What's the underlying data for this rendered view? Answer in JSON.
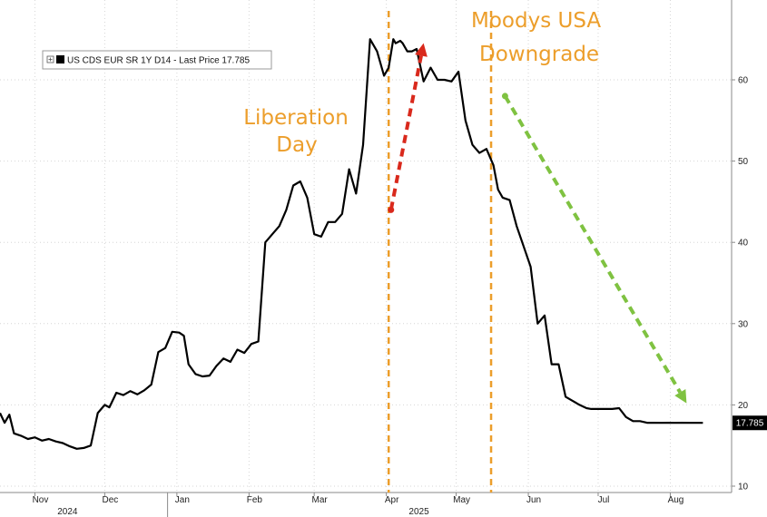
{
  "chart_data": {
    "type": "line",
    "legend_entry": "US CDS EUR SR 1Y D14 - Last Price 17.785",
    "last_price_label": "17.785",
    "last_price": 17.785,
    "ylim": [
      10,
      66
    ],
    "y_ticks": [
      10,
      20,
      30,
      40,
      50,
      60
    ],
    "y_tick_labels": [
      "10",
      "20",
      "30",
      "40",
      "50",
      "60"
    ],
    "x_ticks": [
      {
        "date": "2024-11-01",
        "label": "Nov"
      },
      {
        "date": "2024-12-01",
        "label": "Dec"
      },
      {
        "date": "2025-01-01",
        "label": "Jan"
      },
      {
        "date": "2025-02-01",
        "label": "Feb"
      },
      {
        "date": "2025-03-01",
        "label": "Mar"
      },
      {
        "date": "2025-04-01",
        "label": "Apr"
      },
      {
        "date": "2025-05-01",
        "label": "May"
      },
      {
        "date": "2025-06-01",
        "label": "Jun"
      },
      {
        "date": "2025-07-01",
        "label": "Jul"
      },
      {
        "date": "2025-08-01",
        "label": "Aug"
      }
    ],
    "year_labels": [
      {
        "date": "2024-11-15",
        "label": "2024"
      },
      {
        "date": "2025-04-15",
        "label": "2025"
      }
    ],
    "xlim": [
      "2024-10-17",
      "2025-08-25"
    ],
    "grid": true,
    "legend_position": "top-left",
    "y_axis_position": "right",
    "series": [
      {
        "color": "#000000",
        "x": [
          "2024-10-17",
          "2024-10-19",
          "2024-10-21",
          "2024-10-23",
          "2024-10-26",
          "2024-10-29",
          "2024-11-01",
          "2024-11-04",
          "2024-11-07",
          "2024-11-10",
          "2024-11-13",
          "2024-11-16",
          "2024-11-19",
          "2024-11-22",
          "2024-11-25",
          "2024-11-28",
          "2024-12-01",
          "2024-12-03",
          "2024-12-06",
          "2024-12-09",
          "2024-12-12",
          "2024-12-15",
          "2024-12-18",
          "2024-12-21",
          "2024-12-24",
          "2024-12-27",
          "2024-12-30",
          "2025-01-02",
          "2025-01-04",
          "2025-01-06",
          "2025-01-09",
          "2025-01-12",
          "2025-01-15",
          "2025-01-18",
          "2025-01-21",
          "2025-01-24",
          "2025-01-27",
          "2025-01-30",
          "2025-02-02",
          "2025-02-05",
          "2025-02-08",
          "2025-02-11",
          "2025-02-14",
          "2025-02-17",
          "2025-02-20",
          "2025-02-23",
          "2025-02-26",
          "2025-03-01",
          "2025-03-04",
          "2025-03-07",
          "2025-03-10",
          "2025-03-13",
          "2025-03-16",
          "2025-03-19",
          "2025-03-22",
          "2025-03-25",
          "2025-03-28",
          "2025-03-31",
          "2025-04-02",
          "2025-04-04",
          "2025-04-05",
          "2025-04-07",
          "2025-04-08",
          "2025-04-10",
          "2025-04-12",
          "2025-04-14",
          "2025-04-17",
          "2025-04-20",
          "2025-04-23",
          "2025-04-26",
          "2025-04-29",
          "2025-05-02",
          "2025-05-05",
          "2025-05-08",
          "2025-05-11",
          "2025-05-14",
          "2025-05-17",
          "2025-05-19",
          "2025-05-21",
          "2025-05-24",
          "2025-05-27",
          "2025-05-30",
          "2025-06-02",
          "2025-06-05",
          "2025-06-08",
          "2025-06-11",
          "2025-06-14",
          "2025-06-17",
          "2025-06-20",
          "2025-06-23",
          "2025-06-26",
          "2025-06-28",
          "2025-07-01",
          "2025-07-04",
          "2025-07-07",
          "2025-07-10",
          "2025-07-13",
          "2025-07-16",
          "2025-07-19",
          "2025-07-22",
          "2025-07-25",
          "2025-07-28",
          "2025-07-31",
          "2025-08-03",
          "2025-08-06",
          "2025-08-09",
          "2025-08-12",
          "2025-08-15"
        ],
        "y": [
          19.0,
          17.8,
          18.8,
          16.5,
          16.2,
          15.8,
          16.0,
          15.6,
          15.8,
          15.5,
          15.3,
          14.9,
          14.6,
          14.7,
          15.0,
          19.0,
          20.0,
          19.7,
          21.5,
          21.2,
          21.7,
          21.3,
          21.8,
          22.5,
          26.5,
          27.0,
          29.0,
          28.9,
          28.5,
          25.0,
          23.8,
          23.5,
          23.6,
          24.8,
          25.7,
          25.3,
          26.8,
          26.4,
          27.5,
          27.8,
          40.0,
          41.0,
          42.0,
          44.0,
          47.0,
          47.5,
          45.5,
          41.0,
          40.7,
          42.5,
          42.5,
          43.5,
          49.0,
          46.0,
          52.0,
          65.0,
          63.5,
          60.5,
          61.5,
          65.0,
          64.5,
          64.8,
          64.5,
          63.5,
          63.5,
          63.8,
          59.8,
          61.5,
          60.0,
          60.0,
          59.8,
          61.0,
          55.0,
          52.0,
          51.0,
          51.5,
          49.5,
          46.5,
          45.5,
          45.2,
          42.0,
          39.5,
          37.0,
          30.0,
          31.0,
          25.0,
          25.0,
          21.0,
          20.5,
          20.0,
          19.6,
          19.5,
          19.5,
          19.5,
          19.5,
          19.6,
          18.5,
          18.0,
          18.0,
          17.8,
          17.8,
          17.785,
          17.8,
          17.785,
          17.8,
          17.785,
          17.785,
          17.785
        ]
      }
    ]
  },
  "annotations": {
    "liberation_line1": "Liberation",
    "liberation_line2": "Day",
    "liberation_date": "2025-04-02",
    "moodys_line1": "Moodys USA",
    "moodys_line2": "Downgrade",
    "moodys_date": "2025-05-16",
    "vline_color": "#ec9e2b",
    "red_arrow": {
      "color": "#d9291c",
      "from": {
        "date": "2025-04-03",
        "y": 44.0
      },
      "to": {
        "date": "2025-04-17",
        "y": 64.5
      }
    },
    "green_arrow": {
      "color": "#7fc241",
      "from": {
        "date": "2025-05-22",
        "y": 58.0
      },
      "to": {
        "date": "2025-08-08",
        "y": 20.2
      }
    }
  }
}
